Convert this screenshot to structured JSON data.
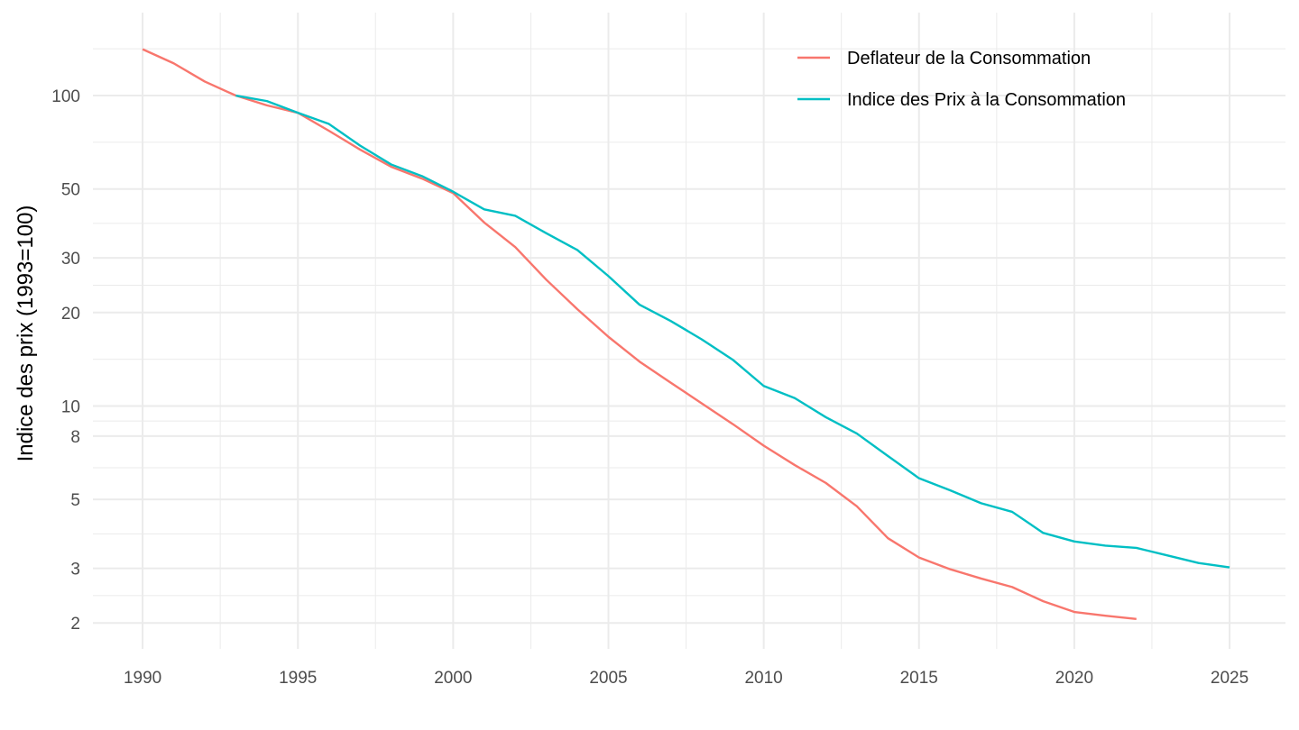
{
  "chart_data": {
    "type": "line",
    "title": "",
    "xlabel": "",
    "ylabel": "Indice des prix (1993=100)",
    "y_scale": "log",
    "xlim": [
      1988.4,
      2026.8
    ],
    "ylim": [
      1.65,
      185
    ],
    "x_ticks": [
      1990,
      1995,
      2000,
      2005,
      2010,
      2015,
      2020,
      2025
    ],
    "y_ticks": [
      2,
      3,
      5,
      8,
      10,
      20,
      30,
      50,
      100
    ],
    "legend_position": "top-right",
    "grid": true,
    "series": [
      {
        "name": "Deflateur de la Consommation",
        "color": "#F8766D",
        "x": [
          1990,
          1991,
          1992,
          1993,
          1994,
          1995,
          1996,
          1997,
          1998,
          1999,
          2000,
          2001,
          2002,
          2003,
          2004,
          2005,
          2006,
          2007,
          2008,
          2009,
          2010,
          2011,
          2012,
          2013,
          2014,
          2015,
          2016,
          2017,
          2018,
          2019,
          2020,
          2021,
          2022
        ],
        "y": [
          141,
          127,
          111,
          100,
          93,
          88,
          77,
          67,
          59,
          54,
          48.5,
          39,
          32.5,
          25.5,
          20.5,
          16.7,
          13.9,
          11.9,
          10.2,
          8.75,
          7.45,
          6.45,
          5.65,
          4.75,
          3.75,
          3.25,
          2.98,
          2.78,
          2.61,
          2.35,
          2.17,
          2.11,
          2.06
        ]
      },
      {
        "name": "Indice des Prix à la Consommation",
        "color": "#00BFC4",
        "x": [
          1993,
          1994,
          1995,
          1996,
          1997,
          1998,
          1999,
          2000,
          2001,
          2002,
          2003,
          2004,
          2005,
          2006,
          2007,
          2008,
          2009,
          2010,
          2011,
          2012,
          2013,
          2014,
          2015,
          2016,
          2017,
          2018,
          2019,
          2020,
          2021,
          2022,
          2023,
          2024,
          2025
        ],
        "y": [
          100,
          96,
          88,
          81,
          69,
          60,
          55,
          49,
          43,
          41,
          36,
          31.8,
          26.2,
          21.2,
          18.8,
          16.4,
          14.1,
          11.6,
          10.6,
          9.2,
          8.15,
          6.9,
          5.85,
          5.35,
          4.86,
          4.56,
          3.9,
          3.66,
          3.55,
          3.49,
          3.3,
          3.12,
          3.02
        ]
      }
    ]
  }
}
